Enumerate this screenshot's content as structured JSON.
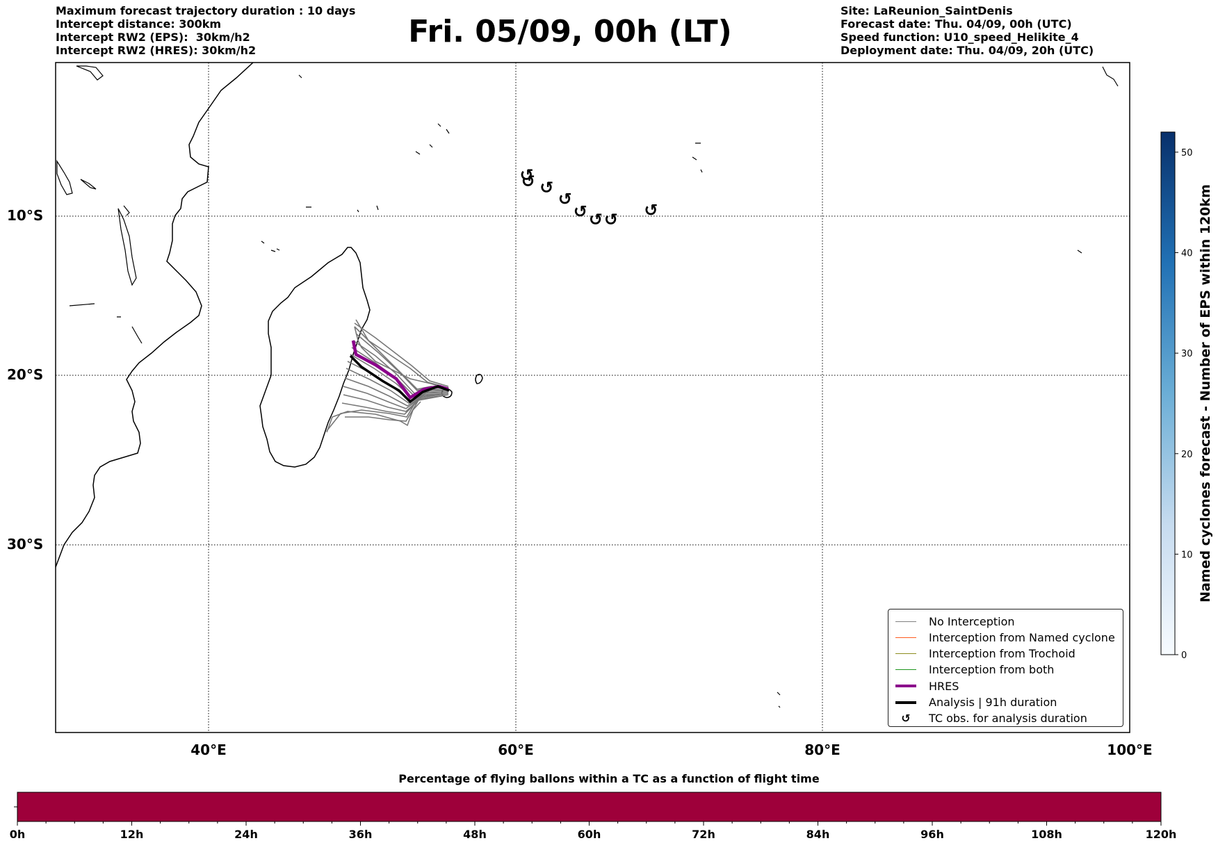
{
  "header_left": {
    "line1": "Maximum forecast trajectory duration : 10 days",
    "line2": "Intercept distance: 300km",
    "line3": "Intercept RW2 (EPS):  30km/h2",
    "line4": "Intercept RW2 (HRES): 30km/h2"
  },
  "title": "Fri. 05/09, 00h (LT)",
  "header_right": {
    "line1": "Site: LaReunion_SaintDenis",
    "line2": "Forecast date: Thu. 04/09, 00h (UTC)",
    "line3": "Speed function: U10_speed_Helikite_4",
    "line4": "Deployment date: Thu. 04/09, 20h (UTC)"
  },
  "map": {
    "lon_labels": [
      "40°E",
      "60°E",
      "80°E",
      "100°E"
    ],
    "lat_labels": [
      "10°S",
      "20°S",
      "30°S"
    ],
    "extent": {
      "lon": [
        30,
        100
      ],
      "lat": [
        -42,
        0
      ]
    },
    "tc_symbol": "↺",
    "tc_observations_lonlat": [
      [
        60.7,
        -7.4
      ],
      [
        60.8,
        -7.8
      ],
      [
        62.0,
        -8.2
      ],
      [
        63.2,
        -8.9
      ],
      [
        64.2,
        -9.7
      ],
      [
        65.2,
        -10.2
      ],
      [
        66.2,
        -10.2
      ],
      [
        68.8,
        -9.6
      ]
    ]
  },
  "legend": {
    "items": [
      {
        "label": "No Interception",
        "color": "#808080",
        "width": 1
      },
      {
        "label": "Interception from Named cyclone",
        "color": "#ff5a1e",
        "width": 1
      },
      {
        "label": "Interception from Trochoid",
        "color": "#8c8c1e",
        "width": 1
      },
      {
        "label": "Interception from both",
        "color": "#1e961e",
        "width": 1
      },
      {
        "label": "HRES",
        "color": "#8b008b",
        "width": 4
      },
      {
        "label": "Analysis | 91h duration",
        "color": "#000000",
        "width": 4
      },
      {
        "label": "TC obs. for analysis duration",
        "color": "#000000",
        "symbol": "↺"
      }
    ]
  },
  "colorbar_right": {
    "label": "Named cyclones forecast - Number of EPS within 120km",
    "ticks": [
      "0",
      "10",
      "20",
      "30",
      "40",
      "50"
    ],
    "range": [
      0,
      52
    ],
    "colors": [
      "#f7fbff",
      "#08306b"
    ]
  },
  "colorbar_bottom": {
    "title": "Percentage of flying ballons within a TC as a function of flight time",
    "ticks": [
      "0h",
      "12h",
      "24h",
      "36h",
      "48h",
      "60h",
      "72h",
      "84h",
      "96h",
      "108h",
      "120h"
    ],
    "fill_color": "#9e003a"
  }
}
